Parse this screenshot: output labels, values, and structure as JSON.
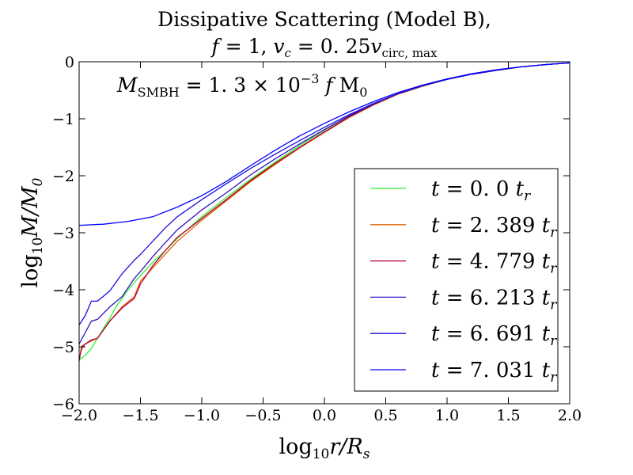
{
  "chart_data": {
    "type": "line",
    "title": [
      "Dissipative Scattering (Model B),",
      "f = 1, v_c = 0.25 v_circ,max"
    ],
    "title_parts": {
      "line1": "Dissipative Scattering (Model B),",
      "line2": {
        "f": "f",
        "eq1": " = 1, ",
        "v": "v",
        "vsub": "c",
        "eq2": " = 0. 25",
        "v2": "v",
        "v2sub": "circ, max"
      }
    },
    "xlabel": "log10 r/Rs",
    "xlabel_parts": {
      "log": "log",
      "sub": "10",
      "body": "r/R",
      "bsub": "s"
    },
    "ylabel": "log10 M/M0",
    "ylabel_parts": {
      "log": "log",
      "sub": "10",
      "body": "M/M",
      "bsub": "0"
    },
    "xlim": [
      -2.0,
      2.0
    ],
    "ylim": [
      -6,
      0
    ],
    "xticks": [
      -2.0,
      -1.5,
      -1.0,
      -0.5,
      0.0,
      0.5,
      1.0,
      1.5,
      2.0
    ],
    "xtick_labels": [
      "−2.0",
      "−1.5",
      "−1.0",
      "−0.5",
      "0.0",
      "0.5",
      "1.0",
      "1.5",
      "2.0"
    ],
    "yticks": [
      -6,
      -5,
      -4,
      -3,
      -2,
      -1,
      0
    ],
    "ytick_labels": [
      "−6",
      "−5",
      "−4",
      "−3",
      "−2",
      "−1",
      "0"
    ],
    "annotation": "M_SMBH = 1.3 × 10^-3 f M0",
    "annotation_parts": {
      "m": "M",
      "msub": "SMBH",
      "eq": " = 1. 3 × 10",
      "exp": "−3",
      "f": " f",
      "m0": " M",
      "m0sub": "0"
    },
    "legend_placement": "lower-right",
    "series": [
      {
        "name": "t = 0.0 t_r",
        "label_value": "0. 0",
        "color": "#33ee33",
        "x": [
          -2.0,
          -1.95,
          -1.9,
          -1.85,
          -1.75,
          -1.7,
          -1.65,
          -1.6,
          -1.5,
          -1.4,
          -1.3,
          -1.2,
          -1.0,
          -0.8,
          -0.6,
          -0.4,
          -0.2,
          0.0,
          0.2,
          0.4,
          0.6,
          0.8,
          1.0,
          1.2,
          1.4,
          1.6,
          1.8,
          2.0
        ],
        "y": [
          -5.23,
          -5.15,
          -5.03,
          -4.85,
          -4.5,
          -4.3,
          -4.15,
          -4.0,
          -3.75,
          -3.52,
          -3.32,
          -3.1,
          -2.72,
          -2.38,
          -2.06,
          -1.76,
          -1.47,
          -1.2,
          -0.95,
          -0.74,
          -0.56,
          -0.42,
          -0.31,
          -0.22,
          -0.15,
          -0.09,
          -0.05,
          -0.02
        ]
      },
      {
        "name": "t = 2.389 t_r",
        "label_value": "2. 389",
        "color": "#e06000",
        "x": [
          -2.0,
          -1.98,
          -1.95,
          -1.9,
          -1.85,
          -1.75,
          -1.65,
          -1.55,
          -1.5,
          -1.4,
          -1.3,
          -1.2,
          -1.0,
          -0.8,
          -0.6,
          -0.4,
          -0.2,
          0.0,
          0.2,
          0.4,
          0.6,
          0.8,
          1.0,
          1.2,
          1.4,
          1.6,
          1.8,
          2.0
        ],
        "y": [
          -5.2,
          -5.05,
          -4.95,
          -4.9,
          -4.85,
          -4.55,
          -4.3,
          -4.12,
          -3.85,
          -3.62,
          -3.38,
          -3.15,
          -2.78,
          -2.44,
          -2.1,
          -1.8,
          -1.51,
          -1.24,
          -0.98,
          -0.76,
          -0.57,
          -0.43,
          -0.31,
          -0.22,
          -0.15,
          -0.09,
          -0.05,
          -0.02
        ]
      },
      {
        "name": "t = 4.779 t_r",
        "label_value": "4. 779",
        "color": "#b0003a",
        "x": [
          -2.0,
          -1.98,
          -1.95,
          -1.9,
          -1.85,
          -1.75,
          -1.65,
          -1.55,
          -1.5,
          -1.4,
          -1.3,
          -1.2,
          -1.0,
          -0.8,
          -0.6,
          -0.4,
          -0.2,
          0.0,
          0.2,
          0.4,
          0.6,
          0.8,
          1.0,
          1.2,
          1.4,
          1.6,
          1.8,
          2.0
        ],
        "y": [
          -5.25,
          -5.0,
          -4.95,
          -4.88,
          -4.85,
          -4.55,
          -4.32,
          -4.15,
          -3.9,
          -3.58,
          -3.32,
          -3.08,
          -2.75,
          -2.42,
          -2.08,
          -1.78,
          -1.5,
          -1.23,
          -0.97,
          -0.75,
          -0.56,
          -0.42,
          -0.31,
          -0.22,
          -0.15,
          -0.09,
          -0.05,
          -0.02
        ]
      },
      {
        "name": "t = 6.213 t_r",
        "label_value": "6. 213",
        "color": "#3010c0",
        "x": [
          -2.0,
          -1.95,
          -1.9,
          -1.85,
          -1.75,
          -1.65,
          -1.55,
          -1.5,
          -1.4,
          -1.3,
          -1.2,
          -1.0,
          -0.8,
          -0.6,
          -0.4,
          -0.2,
          0.0,
          0.2,
          0.4,
          0.6,
          0.8,
          1.0,
          1.2,
          1.4,
          1.6,
          1.8,
          2.0
        ],
        "y": [
          -4.95,
          -4.75,
          -4.55,
          -4.52,
          -4.3,
          -4.12,
          -3.8,
          -3.68,
          -3.42,
          -3.18,
          -2.95,
          -2.6,
          -2.3,
          -1.98,
          -1.7,
          -1.44,
          -1.19,
          -0.95,
          -0.74,
          -0.56,
          -0.42,
          -0.31,
          -0.22,
          -0.15,
          -0.09,
          -0.05,
          -0.02
        ]
      },
      {
        "name": "t = 6.691 t_r",
        "label_value": "6. 691",
        "color": "#1a10e0",
        "x": [
          -2.0,
          -1.95,
          -1.9,
          -1.85,
          -1.75,
          -1.65,
          -1.55,
          -1.5,
          -1.4,
          -1.3,
          -1.2,
          -1.0,
          -0.8,
          -0.6,
          -0.4,
          -0.2,
          0.0,
          0.2,
          0.4,
          0.6,
          0.8,
          1.0,
          1.2,
          1.4,
          1.6,
          1.8,
          2.0
        ],
        "y": [
          -4.62,
          -4.45,
          -4.2,
          -4.2,
          -4.02,
          -3.72,
          -3.48,
          -3.38,
          -3.15,
          -2.92,
          -2.72,
          -2.42,
          -2.14,
          -1.87,
          -1.62,
          -1.38,
          -1.15,
          -0.93,
          -0.73,
          -0.56,
          -0.42,
          -0.31,
          -0.22,
          -0.15,
          -0.09,
          -0.05,
          -0.02
        ]
      },
      {
        "name": "t = 7.031 t_r",
        "label_value": "7. 031",
        "color": "#0000ff",
        "x": [
          -2.0,
          -1.8,
          -1.6,
          -1.4,
          -1.2,
          -1.0,
          -0.8,
          -0.6,
          -0.4,
          -0.2,
          0.0,
          0.2,
          0.4,
          0.6,
          0.8,
          1.0,
          1.2,
          1.4,
          1.6,
          1.8,
          2.0
        ],
        "y": [
          -2.87,
          -2.85,
          -2.8,
          -2.72,
          -2.55,
          -2.35,
          -2.1,
          -1.82,
          -1.55,
          -1.3,
          -1.08,
          -0.88,
          -0.7,
          -0.54,
          -0.41,
          -0.3,
          -0.21,
          -0.14,
          -0.09,
          -0.05,
          -0.02
        ]
      }
    ]
  }
}
